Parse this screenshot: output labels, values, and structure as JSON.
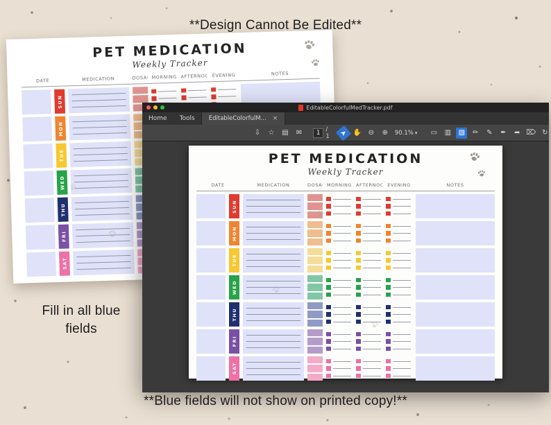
{
  "annotations": {
    "top": "**Design Cannot Be Edited**",
    "left": "Fill in all blue fields",
    "bottom": "**Blue fields will not show on printed copy!**"
  },
  "tracker": {
    "title": "PET MEDICATION",
    "subtitle": "Weekly Tracker",
    "columns": [
      "DATE",
      "MEDICATION",
      "DOSAGE",
      "MORNING",
      "AFTERNOON",
      "EVENING",
      "NOTES"
    ],
    "field_color": "#dfe2f8",
    "line_color": "#7d8497",
    "meds_per_day": 3,
    "days": [
      {
        "label": "SUN",
        "color": "#e03b2f",
        "dosage_color": "#e09490"
      },
      {
        "label": "MON",
        "color": "#ef8532",
        "dosage_color": "#f0bd8e"
      },
      {
        "label": "TUE",
        "color": "#f6c831",
        "dosage_color": "#f5dd99"
      },
      {
        "label": "WED",
        "color": "#27a34a",
        "dosage_color": "#82c7a5"
      },
      {
        "label": "THU",
        "color": "#20306e",
        "dosage_color": "#8f9ac5"
      },
      {
        "label": "FRI",
        "color": "#7a50a5",
        "dosage_color": "#b49cca"
      },
      {
        "label": "SAT",
        "color": "#ef6fa8",
        "dosage_color": "#f3abc8"
      }
    ]
  },
  "acrobat": {
    "window_title": "EditableColorfulMedTracker.pdf",
    "menu_home": "Home",
    "menu_tools": "Tools",
    "doc_tab_label": "EditableColorfulM...",
    "doc_tab_close": "×",
    "toolbar": {
      "page_current": "1",
      "page_total": "/ 1",
      "zoom": "90.1%",
      "left_icons": [
        {
          "name": "save-icon",
          "glyph": "⇩"
        },
        {
          "name": "star-icon",
          "glyph": "☆"
        },
        {
          "name": "print-icon",
          "glyph": "▤"
        },
        {
          "name": "email-icon",
          "glyph": "✉"
        }
      ],
      "mid_icons": [
        {
          "name": "select-tool-icon",
          "glyph": "➤",
          "active": true
        },
        {
          "name": "hand-tool-icon",
          "glyph": "✋"
        },
        {
          "name": "zoom-out-icon",
          "glyph": "⊖"
        },
        {
          "name": "zoom-in-icon",
          "glyph": "⊕"
        }
      ],
      "view_icons": [
        {
          "name": "page-view-icon",
          "glyph": "▭"
        },
        {
          "name": "scroll-view-icon",
          "glyph": "▥"
        },
        {
          "name": "tools-panel-icon",
          "glyph": "▧",
          "active": true
        }
      ],
      "right_icons": [
        {
          "name": "comment-icon",
          "glyph": "✏"
        },
        {
          "name": "highlighter-icon",
          "glyph": "✎"
        },
        {
          "name": "fill-sign-icon",
          "glyph": "✒"
        },
        {
          "name": "share-icon",
          "glyph": "➦"
        },
        {
          "name": "delete-icon",
          "glyph": "⌦"
        },
        {
          "name": "rotate-icon",
          "glyph": "↻"
        }
      ]
    }
  }
}
